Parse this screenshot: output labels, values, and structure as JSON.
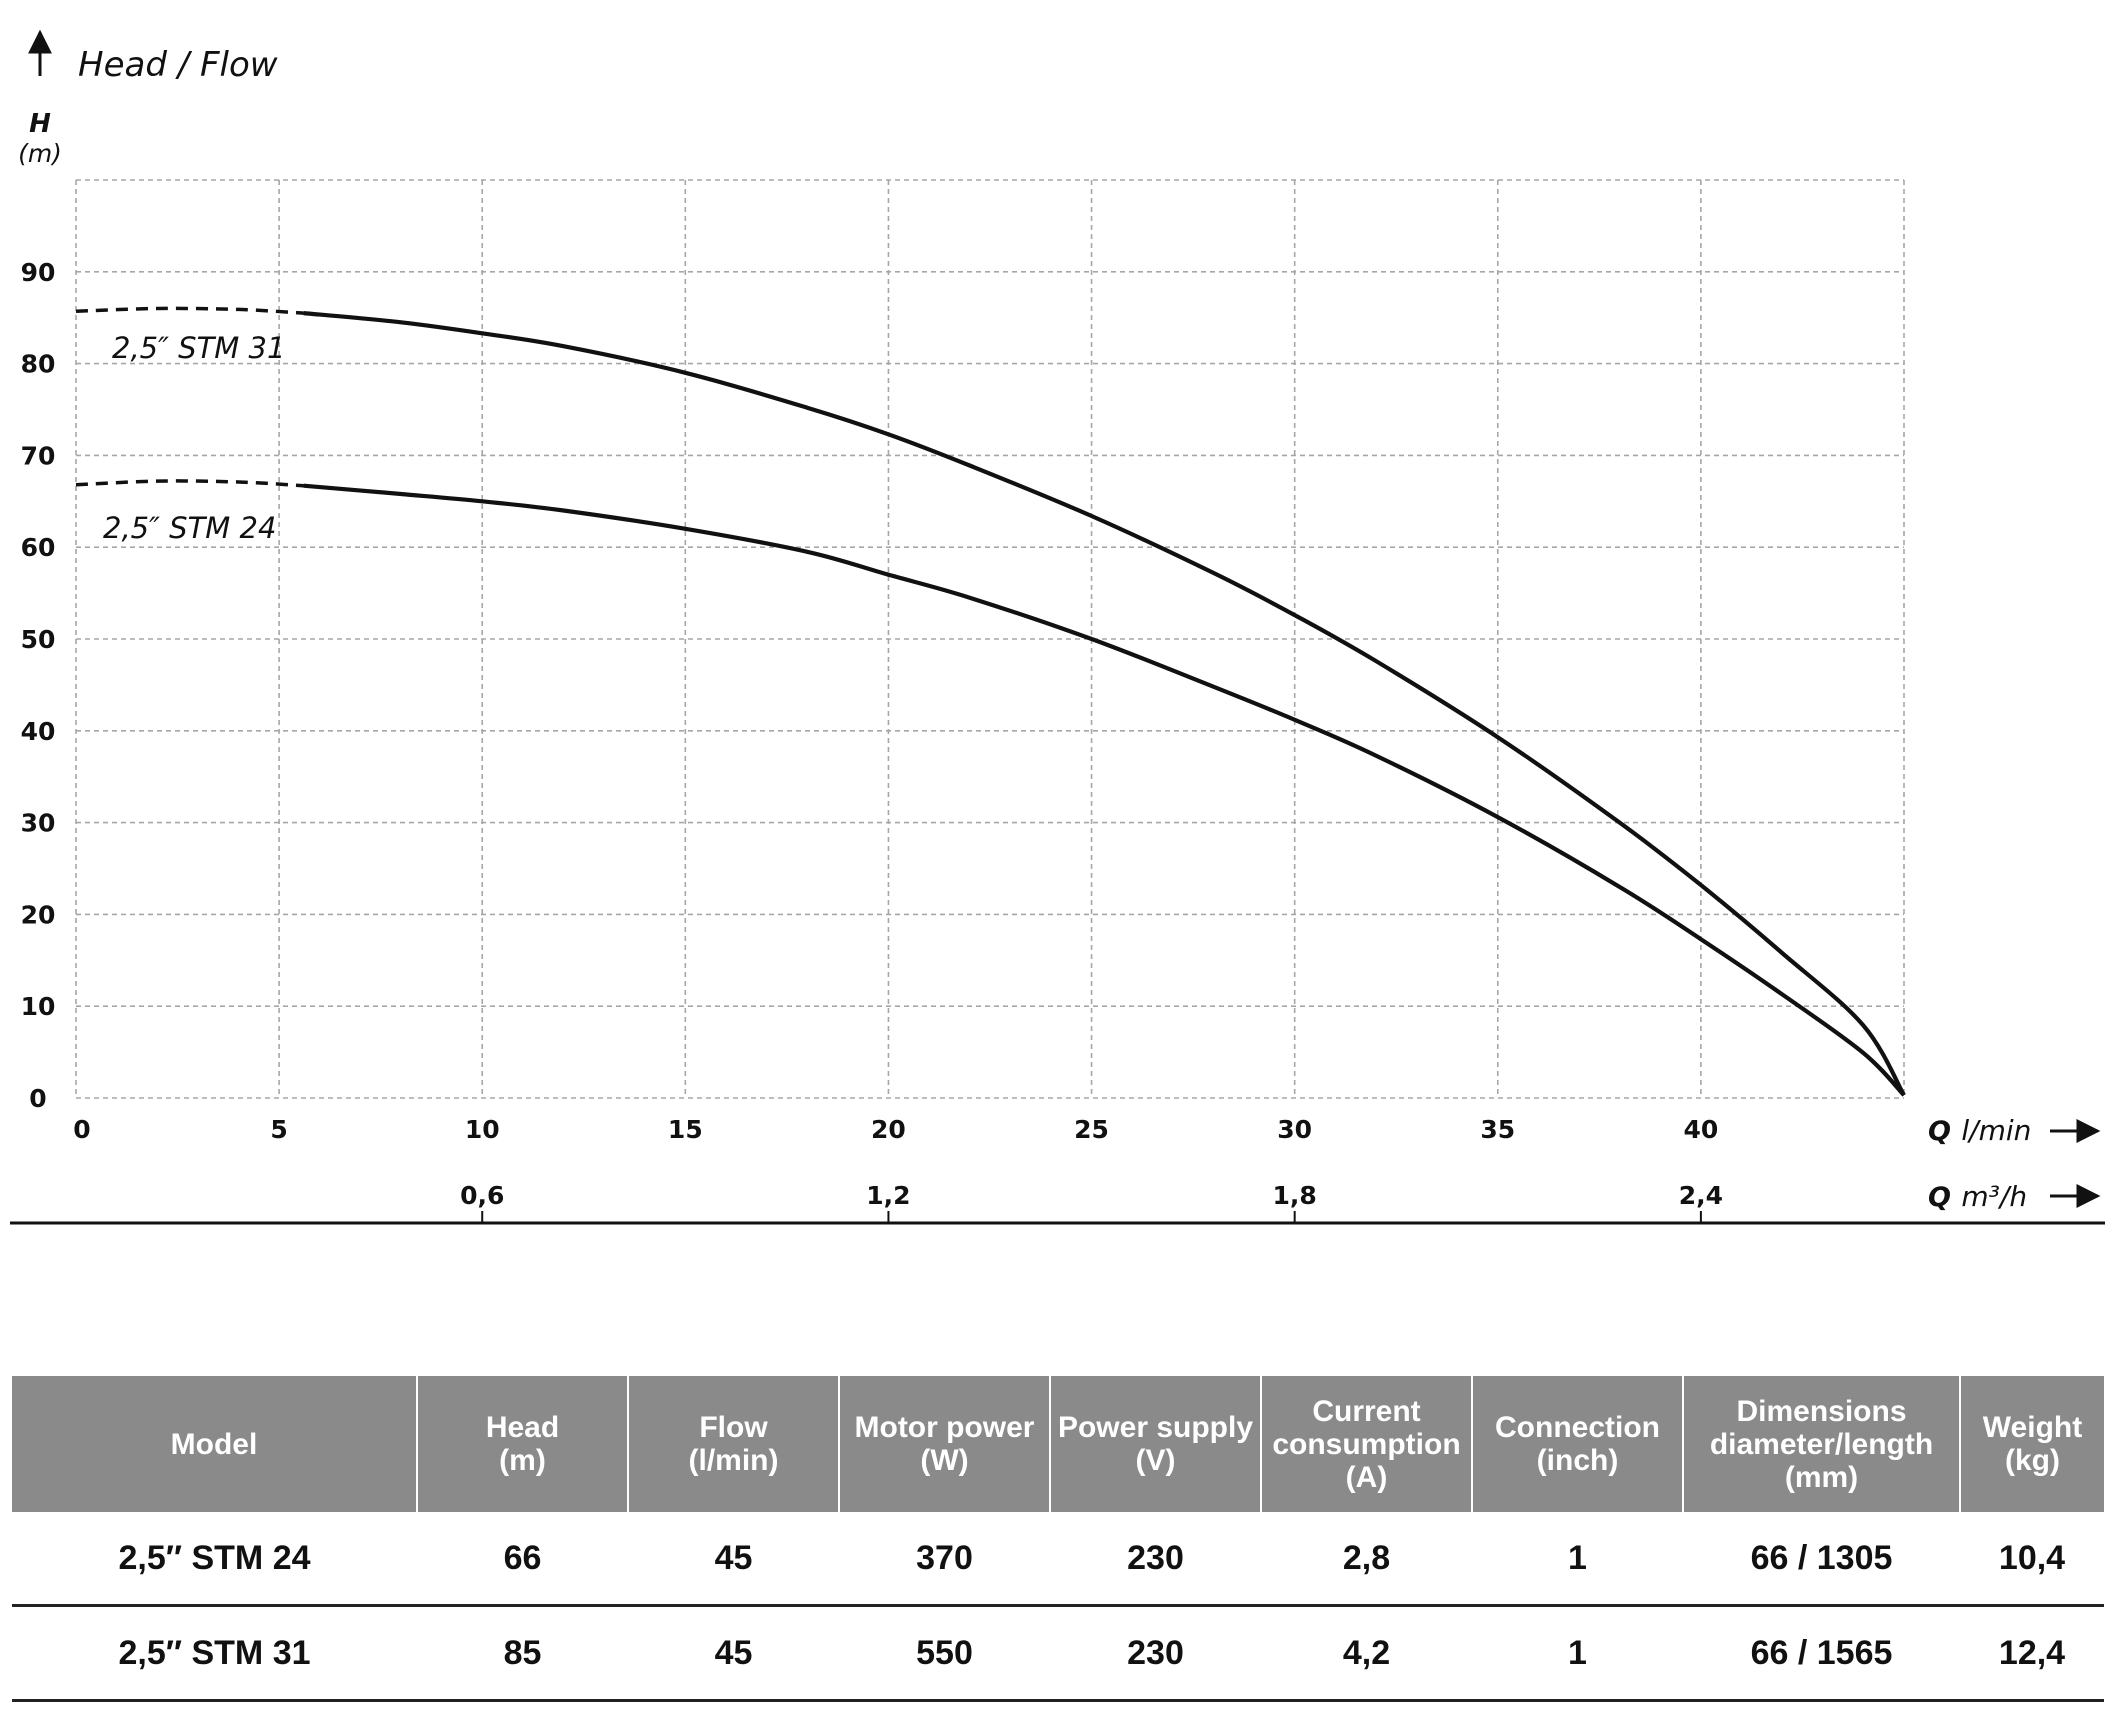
{
  "chart_data": {
    "type": "line",
    "title": "Head / Flow",
    "ylabel": "H",
    "yunit": "(m)",
    "xlabel": "Q",
    "xunit": "l/min",
    "x2label": "Q",
    "x2unit": "m³/h",
    "xlim": [
      0,
      45
    ],
    "ylim": [
      0,
      100
    ],
    "grid": true,
    "x_ticks": [
      0,
      5,
      10,
      15,
      20,
      25,
      30,
      35,
      40
    ],
    "x_tick_labels": [
      "0",
      "5",
      "10",
      "15",
      "20",
      "25",
      "30",
      "35",
      "40"
    ],
    "y_ticks": [
      0,
      10,
      20,
      30,
      40,
      50,
      60,
      70,
      80,
      90
    ],
    "y_tick_labels": [
      "0",
      "10",
      "20",
      "30",
      "40",
      "50",
      "60",
      "70",
      "80",
      "90"
    ],
    "x2_ticks": [
      0.6,
      1.2,
      1.8,
      2.4
    ],
    "x2_tick_labels": [
      "0,6",
      "1,2",
      "1,8",
      "2,4"
    ],
    "series": [
      {
        "name": "2,5″ STM 31",
        "dashed_x": [
          0,
          2,
          4,
          5.6
        ],
        "dashed_y": [
          85.7,
          86.0,
          85.9,
          85.5
        ],
        "x": [
          5.6,
          8,
          10,
          12,
          15,
          18,
          20,
          22,
          25,
          28,
          30,
          32,
          35,
          38,
          40,
          42,
          44,
          45
        ],
        "y": [
          85.5,
          84.5,
          83.3,
          81.9,
          79.0,
          75.2,
          72.3,
          68.9,
          63.4,
          57.2,
          52.6,
          47.6,
          39.3,
          30.0,
          23.2,
          15.8,
          7.9,
          0.3
        ]
      },
      {
        "name": "2,5″ STM 24",
        "dashed_x": [
          0,
          2,
          4,
          5.6
        ],
        "dashed_y": [
          66.8,
          67.2,
          67.1,
          66.7
        ],
        "x": [
          5.6,
          8,
          10,
          12,
          15,
          18,
          20,
          22,
          25,
          28,
          30,
          32,
          35,
          38,
          40,
          42,
          44,
          45
        ],
        "y": [
          66.7,
          65.8,
          65.0,
          64.0,
          62.0,
          59.5,
          57.0,
          54.5,
          50.0,
          44.8,
          41.2,
          37.3,
          30.6,
          23.0,
          17.3,
          11.3,
          4.9,
          0.3
        ]
      }
    ]
  },
  "table": {
    "headers": [
      [
        "Model"
      ],
      [
        "Head",
        "(m)"
      ],
      [
        "Flow",
        "(l/min)"
      ],
      [
        "Motor power",
        "(W)"
      ],
      [
        "Power supply",
        "(V)"
      ],
      [
        "Current",
        "consumption",
        "(A)"
      ],
      [
        "Connection",
        "(inch)"
      ],
      [
        "Dimensions",
        "diameter/length",
        "(mm)"
      ],
      [
        "Weight",
        "(kg)"
      ]
    ],
    "rows": [
      [
        "2,5″ STM 24",
        "66",
        "45",
        "370",
        "230",
        "2,8",
        "1",
        "66 / 1305",
        "10,4"
      ],
      [
        "2,5″ STM 31",
        "85",
        "45",
        "550",
        "230",
        "4,2",
        "1",
        "66 / 1565",
        "12,4"
      ]
    ]
  }
}
